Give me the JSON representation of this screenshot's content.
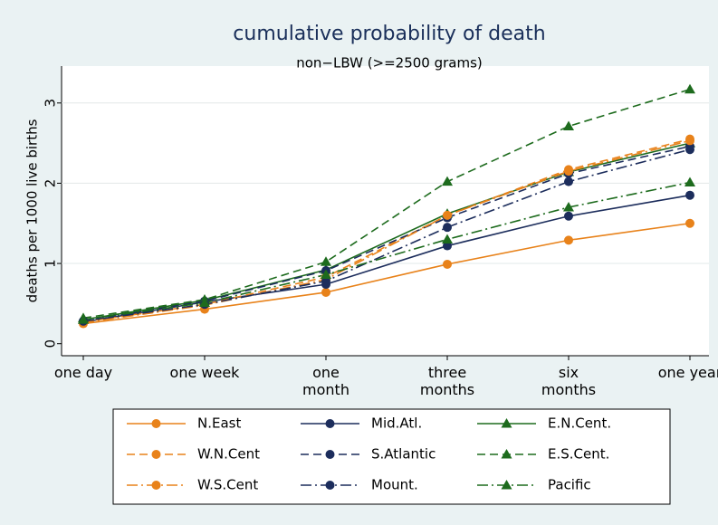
{
  "chart_data": {
    "type": "line",
    "title": "cumulative probability of death",
    "subtitle": "non−LBW (>=2500 grams)",
    "y_label": "deaths per 1000 live births",
    "categories": [
      "one day",
      "one week",
      "one month",
      "three months",
      "six months",
      "one year"
    ],
    "ylim": [
      -0.15,
      3.46
    ],
    "yticks": [
      0,
      1,
      2,
      3
    ],
    "grid": true,
    "legend": "bottom",
    "series": [
      {
        "name": "N.East",
        "color": "#e8821a",
        "dash": "solid",
        "marker": "circle",
        "values": [
          0.25,
          0.43,
          0.64,
          0.99,
          1.29,
          1.5
        ]
      },
      {
        "name": "Mid.Atl.",
        "color": "#1c2d5c",
        "dash": "solid",
        "marker": "circle",
        "values": [
          0.27,
          0.52,
          0.74,
          1.22,
          1.59,
          1.85
        ]
      },
      {
        "name": "E.N.Cent.",
        "color": "#1d6b1d",
        "dash": "solid",
        "marker": "triangle",
        "values": [
          0.3,
          0.54,
          0.92,
          1.62,
          2.14,
          2.5
        ]
      },
      {
        "name": "W.N.Cent",
        "color": "#e8821a",
        "dash": "dash",
        "marker": "circle",
        "values": [
          0.27,
          0.49,
          0.83,
          1.6,
          2.17,
          2.55
        ]
      },
      {
        "name": "S.Atlantic",
        "color": "#1c2d5c",
        "dash": "dash",
        "marker": "circle",
        "values": [
          0.28,
          0.53,
          0.91,
          1.57,
          2.12,
          2.46
        ]
      },
      {
        "name": "E.S.Cent.",
        "color": "#1d6b1d",
        "dash": "dash",
        "marker": "triangle",
        "values": [
          0.32,
          0.55,
          1.02,
          2.02,
          2.71,
          3.17
        ]
      },
      {
        "name": "W.S.Cent",
        "color": "#e8821a",
        "dash": "dashdot",
        "marker": "circle",
        "values": [
          0.26,
          0.48,
          0.8,
          1.6,
          2.15,
          2.53
        ]
      },
      {
        "name": "Mount.",
        "color": "#1c2d5c",
        "dash": "dashdot",
        "marker": "circle",
        "values": [
          0.28,
          0.49,
          0.78,
          1.45,
          2.02,
          2.42
        ]
      },
      {
        "name": "Pacific",
        "color": "#1d6b1d",
        "dash": "dashdot",
        "marker": "triangle",
        "values": [
          0.3,
          0.51,
          0.86,
          1.3,
          1.7,
          2.01
        ]
      }
    ]
  }
}
